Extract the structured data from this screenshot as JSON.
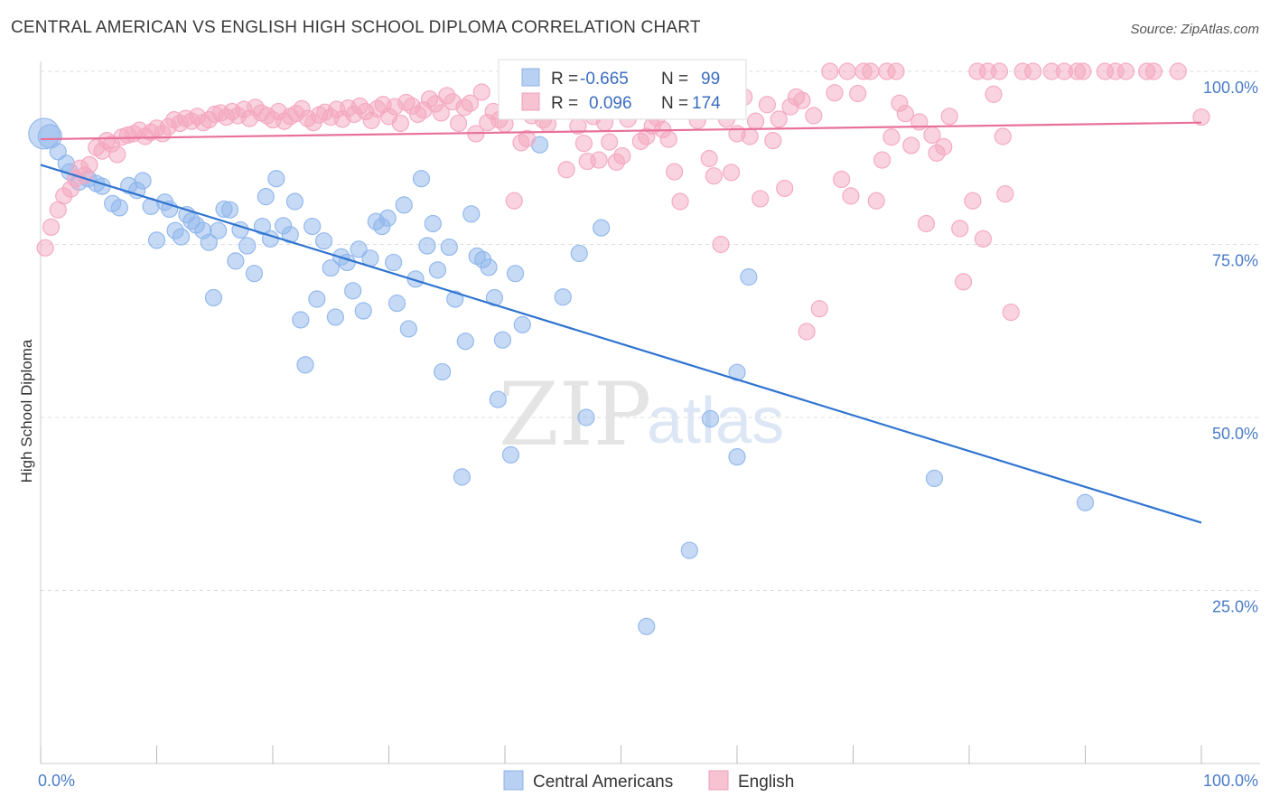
{
  "title": "CENTRAL AMERICAN VS ENGLISH HIGH SCHOOL DIPLOMA CORRELATION CHART",
  "source": "Source: ZipAtlas.com",
  "watermark": {
    "zip": "ZIP",
    "atlas": "atlas"
  },
  "legend": {
    "r_label": "R =",
    "n_label": "N =",
    "rows": [
      {
        "r": "-0.665",
        "n": "99"
      },
      {
        "r": "0.096",
        "n": "174"
      }
    ]
  },
  "chart_data": {
    "type": "scatter",
    "title": "CENTRAL AMERICAN VS ENGLISH HIGH SCHOOL DIPLOMA CORRELATION CHART",
    "xlabel": "",
    "ylabel": "High School Diploma",
    "xlim": [
      0,
      100
    ],
    "ylim": [
      0,
      100
    ],
    "x_tick_labels": [
      "0.0%",
      "100.0%"
    ],
    "y_ticks": [
      25,
      50,
      75,
      100
    ],
    "y_tick_labels": [
      "25.0%",
      "50.0%",
      "75.0%",
      "100.0%"
    ],
    "grid": "horizontal dashed",
    "legend_position": "top-center",
    "series": [
      {
        "name": "Central Americans",
        "color": "#8fb6ec",
        "line_color": "#2f74d0",
        "trend": {
          "x": [
            0,
            100
          ],
          "y": [
            86.5,
            34.8
          ]
        },
        "points": [
          [
            0.3,
            91
          ],
          [
            0.8,
            90.6
          ],
          [
            1.5,
            88.4
          ],
          [
            2.2,
            86.7
          ],
          [
            2.5,
            85.5
          ],
          [
            3.3,
            84
          ],
          [
            4.1,
            84.5
          ],
          [
            4.8,
            83.8
          ],
          [
            5.3,
            83.4
          ],
          [
            6.2,
            80.9
          ],
          [
            6.8,
            80.3
          ],
          [
            7.6,
            83.5
          ],
          [
            8.3,
            82.8
          ],
          [
            8.8,
            84.2
          ],
          [
            9.5,
            80.5
          ],
          [
            10,
            75.6
          ],
          [
            10.7,
            81.1
          ],
          [
            11.1,
            80.1
          ],
          [
            11.6,
            77
          ],
          [
            12.1,
            76.1
          ],
          [
            12.6,
            79.3
          ],
          [
            13,
            78.4
          ],
          [
            13.4,
            77.8
          ],
          [
            14,
            77
          ],
          [
            14.5,
            75.3
          ],
          [
            14.9,
            67.3
          ],
          [
            15.3,
            77
          ],
          [
            15.8,
            80.1
          ],
          [
            16.3,
            80
          ],
          [
            16.8,
            72.6
          ],
          [
            17.2,
            77.1
          ],
          [
            17.8,
            74.8
          ],
          [
            18.4,
            70.8
          ],
          [
            19.1,
            77.6
          ],
          [
            19.4,
            81.9
          ],
          [
            19.8,
            75.8
          ],
          [
            20.3,
            84.5
          ],
          [
            20.9,
            77.7
          ],
          [
            21.5,
            76.4
          ],
          [
            21.9,
            81.2
          ],
          [
            22.4,
            64.1
          ],
          [
            22.8,
            57.6
          ],
          [
            23.4,
            77.6
          ],
          [
            23.8,
            67.1
          ],
          [
            24.4,
            75.5
          ],
          [
            25,
            71.6
          ],
          [
            25.4,
            64.5
          ],
          [
            25.9,
            73.2
          ],
          [
            26.4,
            72.4
          ],
          [
            26.9,
            68.3
          ],
          [
            27.4,
            74.3
          ],
          [
            27.8,
            65.4
          ],
          [
            28.4,
            73
          ],
          [
            28.9,
            78.3
          ],
          [
            29.4,
            77.6
          ],
          [
            29.9,
            78.8
          ],
          [
            30.4,
            72.4
          ],
          [
            30.7,
            66.5
          ],
          [
            31.3,
            80.7
          ],
          [
            31.7,
            62.8
          ],
          [
            32.3,
            70
          ],
          [
            32.8,
            84.5
          ],
          [
            33.3,
            74.8
          ],
          [
            33.8,
            78
          ],
          [
            34.2,
            71.3
          ],
          [
            34.6,
            56.6
          ],
          [
            35.2,
            74.6
          ],
          [
            35.7,
            67.1
          ],
          [
            36.3,
            41.4
          ],
          [
            36.6,
            61
          ],
          [
            37.1,
            79.4
          ],
          [
            37.6,
            73.3
          ],
          [
            38.1,
            72.8
          ],
          [
            38.6,
            71.7
          ],
          [
            39.1,
            67.3
          ],
          [
            39.4,
            52.6
          ],
          [
            39.8,
            61.2
          ],
          [
            40.5,
            44.6
          ],
          [
            40.9,
            70.8
          ],
          [
            41.5,
            63.4
          ],
          [
            43,
            89.4
          ],
          [
            45,
            67.4
          ],
          [
            46.4,
            73.7
          ],
          [
            47,
            50
          ],
          [
            48.3,
            77.4
          ],
          [
            52.2,
            19.8
          ],
          [
            55.9,
            30.8
          ],
          [
            57.7,
            49.8
          ],
          [
            60,
            56.5
          ],
          [
            60,
            44.3
          ],
          [
            61,
            70.3
          ],
          [
            77,
            41.2
          ],
          [
            90,
            37.7
          ]
        ]
      },
      {
        "name": "English",
        "color": "#f4a8c0",
        "line_color": "#e8709a",
        "trend": {
          "x": [
            0,
            100
          ],
          "y": [
            90.2,
            92.6
          ]
        },
        "points": [
          [
            0.4,
            74.5
          ],
          [
            0.9,
            77.5
          ],
          [
            1.5,
            80
          ],
          [
            2,
            82
          ],
          [
            2.6,
            83
          ],
          [
            3,
            84.5
          ],
          [
            3.4,
            86
          ],
          [
            3.8,
            85
          ],
          [
            4.2,
            86.5
          ],
          [
            4.8,
            89
          ],
          [
            5.3,
            88.5
          ],
          [
            5.7,
            90
          ],
          [
            6.1,
            89.5
          ],
          [
            6.6,
            88
          ],
          [
            7,
            90.5
          ],
          [
            7.5,
            90.8
          ],
          [
            8,
            91
          ],
          [
            8.5,
            91.5
          ],
          [
            9,
            90.6
          ],
          [
            9.5,
            91.2
          ],
          [
            10,
            91.8
          ],
          [
            10.5,
            91
          ],
          [
            11,
            92
          ],
          [
            11.5,
            93
          ],
          [
            12,
            92.5
          ],
          [
            12.5,
            93.2
          ],
          [
            13,
            92.8
          ],
          [
            13.5,
            93.5
          ],
          [
            14,
            92.6
          ],
          [
            14.5,
            93
          ],
          [
            15,
            93.8
          ],
          [
            15.5,
            94
          ],
          [
            16,
            93.4
          ],
          [
            16.5,
            94.2
          ],
          [
            17,
            93.6
          ],
          [
            17.5,
            94.5
          ],
          [
            18,
            93.2
          ],
          [
            18.5,
            94.8
          ],
          [
            19,
            94
          ],
          [
            19.5,
            93.6
          ],
          [
            20,
            93
          ],
          [
            20.5,
            94.2
          ],
          [
            21,
            92.8
          ],
          [
            21.5,
            93.5
          ],
          [
            22,
            93.9
          ],
          [
            22.5,
            94.6
          ],
          [
            23,
            93.2
          ],
          [
            23.5,
            92.6
          ],
          [
            24,
            93.7
          ],
          [
            24.5,
            94.1
          ],
          [
            25,
            93.4
          ],
          [
            25.5,
            94.5
          ],
          [
            26,
            93.1
          ],
          [
            26.5,
            94.7
          ],
          [
            27,
            93.8
          ],
          [
            27.5,
            95
          ],
          [
            28,
            94.2
          ],
          [
            28.5,
            92.9
          ],
          [
            29,
            94.6
          ],
          [
            29.5,
            95.2
          ],
          [
            30,
            93.5
          ],
          [
            30.5,
            94.9
          ],
          [
            31,
            92.5
          ],
          [
            31.5,
            95.5
          ],
          [
            32,
            95
          ],
          [
            32.5,
            93.8
          ],
          [
            33,
            94.4
          ],
          [
            33.5,
            96
          ],
          [
            34,
            95.3
          ],
          [
            34.5,
            94
          ],
          [
            35,
            96.5
          ],
          [
            35.5,
            95.6
          ],
          [
            36,
            92.5
          ],
          [
            36.5,
            94.8
          ],
          [
            37,
            95.4
          ],
          [
            37.5,
            91
          ],
          [
            38,
            97
          ],
          [
            38.5,
            92.6
          ],
          [
            39,
            94.2
          ],
          [
            39.5,
            93
          ],
          [
            40,
            92.4
          ],
          [
            40.4,
            95
          ],
          [
            40.8,
            81.3
          ],
          [
            41.4,
            89.7
          ],
          [
            41.9,
            90.3
          ],
          [
            42.3,
            93.6
          ],
          [
            42.8,
            96.3
          ],
          [
            43.3,
            93
          ],
          [
            43.7,
            92.4
          ],
          [
            44.3,
            95.4
          ],
          [
            44.8,
            95.2
          ],
          [
            45.3,
            85.8
          ],
          [
            45.7,
            96.7
          ],
          [
            46.3,
            92.1
          ],
          [
            46.8,
            89.6
          ],
          [
            47.1,
            87
          ],
          [
            47.6,
            93.5
          ],
          [
            48.1,
            87.2
          ],
          [
            48.6,
            92.6
          ],
          [
            49,
            89.8
          ],
          [
            49.6,
            86.9
          ],
          [
            50.1,
            87.8
          ],
          [
            50.6,
            93.1
          ],
          [
            51.2,
            96.8
          ],
          [
            51.7,
            89.9
          ],
          [
            52.2,
            90.6
          ],
          [
            52.7,
            92.1
          ],
          [
            53.1,
            93.3
          ],
          [
            53.6,
            91.6
          ],
          [
            54.1,
            90.2
          ],
          [
            54.6,
            85.5
          ],
          [
            55.1,
            81.2
          ],
          [
            55.6,
            96
          ],
          [
            56.1,
            95.6
          ],
          [
            56.6,
            92.9
          ],
          [
            57.1,
            97.6
          ],
          [
            57.6,
            87.4
          ],
          [
            58,
            84.9
          ],
          [
            58.6,
            75
          ],
          [
            59.1,
            93.1
          ],
          [
            59.5,
            85.4
          ],
          [
            60,
            91
          ],
          [
            60.6,
            96.3
          ],
          [
            61.1,
            90.6
          ],
          [
            61.6,
            92.8
          ],
          [
            62,
            81.6
          ],
          [
            62.6,
            95.2
          ],
          [
            63.1,
            90
          ],
          [
            63.6,
            93.1
          ],
          [
            64.1,
            83.1
          ],
          [
            64.6,
            94.9
          ],
          [
            65.1,
            96.3
          ],
          [
            65.6,
            95.8
          ],
          [
            66,
            62.4
          ],
          [
            66.6,
            93.6
          ],
          [
            67.1,
            65.7
          ],
          [
            68,
            100
          ],
          [
            68.4,
            96.9
          ],
          [
            69,
            84.4
          ],
          [
            69.5,
            100
          ],
          [
            69.8,
            82
          ],
          [
            70.4,
            96.8
          ],
          [
            70.9,
            100
          ],
          [
            71.5,
            100
          ],
          [
            72,
            81.3
          ],
          [
            72.5,
            87.2
          ],
          [
            72.9,
            100
          ],
          [
            73.3,
            90.5
          ],
          [
            73.7,
            100
          ],
          [
            74,
            95.4
          ],
          [
            74.5,
            93.9
          ],
          [
            75,
            89.3
          ],
          [
            75.7,
            92.7
          ],
          [
            76.3,
            78
          ],
          [
            76.8,
            90.8
          ],
          [
            77.2,
            88.2
          ],
          [
            77.8,
            89.1
          ],
          [
            78.3,
            93.5
          ],
          [
            79.2,
            77.3
          ],
          [
            79.5,
            69.6
          ],
          [
            80.3,
            81.3
          ],
          [
            80.7,
            100
          ],
          [
            81.2,
            75.8
          ],
          [
            81.6,
            100
          ],
          [
            82.1,
            96.7
          ],
          [
            82.6,
            100
          ],
          [
            82.9,
            90.6
          ],
          [
            83.1,
            82.3
          ],
          [
            83.6,
            65.2
          ],
          [
            84.6,
            100
          ],
          [
            85.5,
            100
          ],
          [
            87.1,
            100
          ],
          [
            88.2,
            100
          ],
          [
            89.3,
            100
          ],
          [
            89.8,
            100
          ],
          [
            91.7,
            100
          ],
          [
            92.6,
            100
          ],
          [
            93.5,
            100
          ],
          [
            95.3,
            100
          ],
          [
            95.9,
            100
          ],
          [
            98,
            100
          ],
          [
            100,
            93.4
          ]
        ]
      }
    ]
  }
}
